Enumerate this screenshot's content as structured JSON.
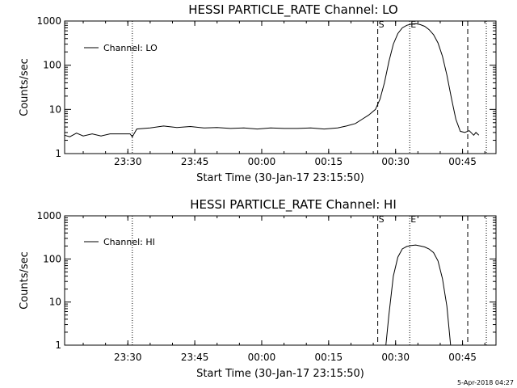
{
  "chart_data": [
    {
      "type": "line",
      "title": "HESSI PARTICLE_RATE Channel: LO",
      "xlabel": "Start Time (30-Jan-17 23:15:50)",
      "ylabel": "Counts/sec",
      "y_scale": "log",
      "ylim": [
        1,
        1000
      ],
      "xlim": [
        "23:15:50",
        "00:52:30"
      ],
      "x_tick_labels": [
        "23:30",
        "23:45",
        "00:00",
        "00:15",
        "00:30",
        "00:45"
      ],
      "y_tick_labels": [
        "1",
        "10",
        "100",
        "1000"
      ],
      "legend": {
        "entries": [
          "Channel: LO"
        ],
        "placement": "top-left"
      },
      "grid": false,
      "markers": [
        {
          "label": "",
          "time": "23:31:00",
          "style": "dotted"
        },
        {
          "label": "S",
          "time": "00:26:00",
          "style": "dashed"
        },
        {
          "label": "E",
          "time": "00:33:10",
          "style": "dotted"
        },
        {
          "label": "",
          "time": "00:46:10",
          "style": "dashed"
        },
        {
          "label": "",
          "time": "00:50:20",
          "style": "dotted"
        }
      ],
      "series": [
        {
          "name": "Channel: LO",
          "x": [
            "23:15:50",
            "23:17:00",
            "23:18:30",
            "23:20:00",
            "23:22:00",
            "23:24:00",
            "23:26:00",
            "23:28:00",
            "23:30:30",
            "23:31:00",
            "23:32:00",
            "23:35:00",
            "23:38:00",
            "23:41:00",
            "23:44:00",
            "23:47:00",
            "23:50:00",
            "23:53:00",
            "23:56:00",
            "23:59:00",
            "00:02:00",
            "00:05:00",
            "00:08:00",
            "00:11:00",
            "00:14:00",
            "00:17:00",
            "00:19:00",
            "00:21:00",
            "00:22:30",
            "00:24:00",
            "00:25:30",
            "00:26:30",
            "00:27:30",
            "00:28:30",
            "00:29:30",
            "00:30:30",
            "00:31:30",
            "00:32:30",
            "00:33:30",
            "00:34:30",
            "00:35:30",
            "00:36:30",
            "00:37:30",
            "00:38:30",
            "00:39:30",
            "00:40:30",
            "00:41:30",
            "00:42:30",
            "00:43:30",
            "00:44:30",
            "00:45:30",
            "00:46:30",
            "00:47:30",
            "00:48:00",
            "00:48:40"
          ],
          "y": [
            2.6,
            2.4,
            2.9,
            2.5,
            2.8,
            2.5,
            2.8,
            2.8,
            2.8,
            2.4,
            3.6,
            3.8,
            4.2,
            3.9,
            4.1,
            3.8,
            3.9,
            3.7,
            3.8,
            3.6,
            3.8,
            3.7,
            3.7,
            3.8,
            3.6,
            3.8,
            4.2,
            4.8,
            6.0,
            7.5,
            10,
            17,
            40,
            120,
            300,
            520,
            700,
            800,
            850,
            870,
            830,
            760,
            640,
            490,
            320,
            160,
            60,
            18,
            6.0,
            3.2,
            3.0,
            3.3,
            2.6,
            3.0,
            2.6
          ]
        }
      ]
    },
    {
      "type": "line",
      "title": "HESSI PARTICLE_RATE Channel: HI",
      "xlabel": "Start Time (30-Jan-17 23:15:50)",
      "ylabel": "Counts/sec",
      "y_scale": "log",
      "ylim": [
        1,
        1000
      ],
      "xlim": [
        "23:15:50",
        "00:52:30"
      ],
      "x_tick_labels": [
        "23:30",
        "23:45",
        "00:00",
        "00:15",
        "00:30",
        "00:45"
      ],
      "y_tick_labels": [
        "1",
        "10",
        "100",
        "1000"
      ],
      "legend": {
        "entries": [
          "Channel: HI"
        ],
        "placement": "top-left"
      },
      "grid": false,
      "markers": [
        {
          "label": "",
          "time": "23:31:00",
          "style": "dotted"
        },
        {
          "label": "S",
          "time": "00:26:00",
          "style": "dashed"
        },
        {
          "label": "E",
          "time": "00:33:10",
          "style": "dotted"
        },
        {
          "label": "",
          "time": "00:46:10",
          "style": "dashed"
        },
        {
          "label": "",
          "time": "00:50:20",
          "style": "dotted"
        }
      ],
      "series": [
        {
          "name": "Channel: HI",
          "x": [
            "00:27:50",
            "00:28:30",
            "00:29:30",
            "00:30:30",
            "00:31:30",
            "00:32:30",
            "00:33:30",
            "00:34:30",
            "00:35:30",
            "00:36:30",
            "00:37:30",
            "00:38:30",
            "00:39:30",
            "00:40:30",
            "00:41:30",
            "00:42:20"
          ],
          "y": [
            1.0,
            5,
            40,
            110,
            170,
            195,
            205,
            210,
            200,
            190,
            170,
            140,
            90,
            35,
            8,
            1.0
          ]
        }
      ]
    }
  ],
  "footer": {
    "timestamp": "5-Apr-2018 04:27"
  }
}
